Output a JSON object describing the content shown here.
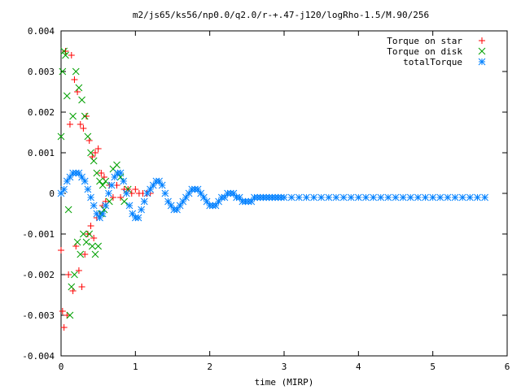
{
  "chart_data": {
    "type": "scatter",
    "title": "m2/js65/ks56/np0.0/q2.0/r-+.47-j120/logRho-1.5/M.90/256",
    "xlabel": "time (MIRP)",
    "ylabel": "",
    "xlim": [
      0,
      6
    ],
    "ylim": [
      -0.004,
      0.004
    ],
    "x_ticks": [
      0,
      1,
      2,
      3,
      4,
      5,
      6
    ],
    "x_tick_labels": [
      "0",
      "1",
      "2",
      "3",
      "4",
      "5",
      "6"
    ],
    "y_ticks": [
      -0.004,
      -0.003,
      -0.002,
      -0.001,
      0,
      0.001,
      0.002,
      0.003,
      0.004
    ],
    "y_tick_labels": [
      "-0.004",
      "-0.003",
      "-0.002",
      "-0.001",
      "0",
      "0.001",
      "0.002",
      "0.003",
      "0.004"
    ],
    "grid": false,
    "legend_position": "top-right",
    "series": [
      {
        "name": "Torque on star",
        "marker": "plus",
        "color": "#ff0000",
        "x": [
          0.0,
          0.02,
          0.04,
          0.06,
          0.08,
          0.1,
          0.12,
          0.14,
          0.16,
          0.18,
          0.2,
          0.22,
          0.24,
          0.26,
          0.28,
          0.3,
          0.32,
          0.34,
          0.36,
          0.38,
          0.4,
          0.42,
          0.44,
          0.46,
          0.48,
          0.5,
          0.52,
          0.54,
          0.56,
          0.58,
          0.6,
          0.65,
          0.7,
          0.75,
          0.8,
          0.85,
          0.9,
          0.95,
          1.0,
          1.05,
          1.1,
          1.15,
          1.2
        ],
        "y": [
          -0.0014,
          -0.0029,
          -0.0033,
          0.0035,
          -0.003,
          -0.002,
          0.0017,
          0.0034,
          -0.0024,
          0.0028,
          -0.0013,
          0.0025,
          -0.0019,
          0.0017,
          -0.0023,
          0.0016,
          -0.0015,
          0.0019,
          -0.001,
          0.0013,
          -0.0008,
          0.0009,
          -0.0011,
          0.001,
          -0.0006,
          0.0011,
          -0.0005,
          0.0005,
          -0.0003,
          0.0004,
          -0.0002,
          0.0002,
          -0.0001,
          0.0002,
          -0.0001,
          0.0001,
          0.0001,
          0.0,
          0.0001,
          0.0,
          0.0,
          0.0,
          0.0
        ]
      },
      {
        "name": "Torque on disk",
        "marker": "cross",
        "color": "#00a000",
        "x": [
          0.0,
          0.02,
          0.04,
          0.06,
          0.08,
          0.1,
          0.12,
          0.14,
          0.16,
          0.18,
          0.2,
          0.22,
          0.24,
          0.26,
          0.28,
          0.3,
          0.32,
          0.34,
          0.36,
          0.38,
          0.4,
          0.42,
          0.44,
          0.46,
          0.48,
          0.5,
          0.52,
          0.54,
          0.56,
          0.58,
          0.6,
          0.65,
          0.7,
          0.75,
          0.8,
          0.85,
          0.9
        ],
        "y": [
          0.0014,
          0.003,
          0.0035,
          0.0034,
          0.0024,
          -0.0004,
          -0.003,
          -0.0023,
          0.0019,
          -0.002,
          0.003,
          -0.0012,
          0.0026,
          -0.0015,
          0.0023,
          -0.001,
          0.0019,
          -0.0012,
          0.0014,
          -0.001,
          0.001,
          -0.0013,
          0.0008,
          -0.0015,
          0.0005,
          -0.0013,
          0.0003,
          -0.0005,
          0.0002,
          -0.0004,
          0.0003,
          -0.0002,
          0.0006,
          0.0007,
          0.0004,
          -0.0002,
          0.0001
        ]
      },
      {
        "name": "totalTorque",
        "marker": "star",
        "color": "#0080ff",
        "x": [
          0.0,
          0.04,
          0.08,
          0.12,
          0.16,
          0.2,
          0.24,
          0.28,
          0.32,
          0.36,
          0.4,
          0.44,
          0.48,
          0.52,
          0.56,
          0.6,
          0.64,
          0.68,
          0.72,
          0.76,
          0.8,
          0.84,
          0.88,
          0.92,
          0.96,
          1.0,
          1.04,
          1.08,
          1.12,
          1.16,
          1.2,
          1.24,
          1.28,
          1.32,
          1.36,
          1.4,
          1.44,
          1.48,
          1.52,
          1.56,
          1.6,
          1.64,
          1.68,
          1.72,
          1.76,
          1.8,
          1.84,
          1.88,
          1.92,
          1.96,
          2.0,
          2.04,
          2.08,
          2.12,
          2.16,
          2.2,
          2.24,
          2.28,
          2.32,
          2.36,
          2.4,
          2.44,
          2.48,
          2.52,
          2.56,
          2.6,
          2.64,
          2.68,
          2.72,
          2.76,
          2.8,
          2.84,
          2.88,
          2.92,
          2.96,
          3.0,
          3.1,
          3.2,
          3.3,
          3.4,
          3.5,
          3.6,
          3.7,
          3.8,
          3.9,
          4.0,
          4.1,
          4.2,
          4.3,
          4.4,
          4.5,
          4.6,
          4.7,
          4.8,
          4.9,
          5.0,
          5.1,
          5.2,
          5.3,
          5.4,
          5.5,
          5.6,
          5.7
        ],
        "y": [
          0.0,
          0.0001,
          0.0003,
          0.0004,
          0.0005,
          0.0005,
          0.0005,
          0.0004,
          0.0003,
          0.0001,
          -0.0001,
          -0.0003,
          -0.0005,
          -0.0006,
          -0.0005,
          -0.0003,
          0.0,
          0.0002,
          0.0004,
          0.0005,
          0.0005,
          0.0003,
          0.0,
          -0.0003,
          -0.0005,
          -0.0006,
          -0.0006,
          -0.0004,
          -0.0002,
          0.0,
          0.0001,
          0.0002,
          0.0003,
          0.0003,
          0.0002,
          0.0,
          -0.0002,
          -0.0003,
          -0.0004,
          -0.0004,
          -0.0003,
          -0.0002,
          -0.0001,
          0.0,
          0.0001,
          0.0001,
          0.0001,
          0.0,
          -0.0001,
          -0.0002,
          -0.0003,
          -0.0003,
          -0.0003,
          -0.0002,
          -0.0001,
          -0.0001,
          0.0,
          0.0,
          0.0,
          -0.0001,
          -0.0001,
          -0.0002,
          -0.0002,
          -0.0002,
          -0.0002,
          -0.0001,
          -0.0001,
          -0.0001,
          -0.0001,
          -0.0001,
          -0.0001,
          -0.0001,
          -0.0001,
          -0.0001,
          -0.0001,
          -0.0001,
          -0.0001,
          -0.0001,
          -0.0001,
          -0.0001,
          -0.0001,
          -0.0001,
          -0.0001,
          -0.0001,
          -0.0001,
          -0.0001,
          -0.0001,
          -0.0001,
          -0.0001,
          -0.0001,
          -0.0001,
          -0.0001,
          -0.0001,
          -0.0001,
          -0.0001,
          -0.0001,
          -0.0001,
          -0.0001,
          -0.0001,
          -0.0001,
          -0.0001,
          -0.0001,
          -0.0001
        ]
      }
    ]
  }
}
